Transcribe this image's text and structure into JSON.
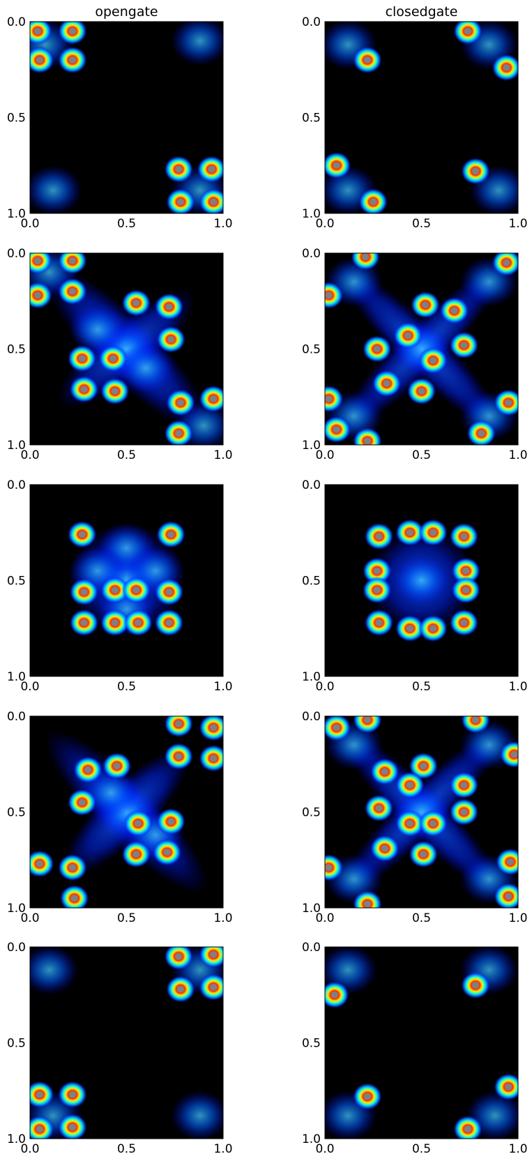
{
  "chart_data": {
    "type": "heatmap",
    "colormap": "jet",
    "background": "#000000",
    "saturated_color": "#808080",
    "grid": false,
    "legend": "none",
    "columns": [
      "opengate",
      "closedgate"
    ],
    "xlim": [
      0.0,
      1.0
    ],
    "ylim": [
      1.0,
      0.0
    ],
    "x_ticks": [
      "0.0",
      "0.5",
      "1.0"
    ],
    "y_ticks": [
      "0.0",
      "0.5",
      "1.0"
    ],
    "panels": [
      {
        "row": 0,
        "col": 0,
        "title": "opengate",
        "blobs": [
          [
            0.04,
            0.05
          ],
          [
            0.22,
            0.05
          ],
          [
            0.05,
            0.2
          ],
          [
            0.22,
            0.2
          ],
          [
            0.77,
            0.77
          ],
          [
            0.94,
            0.77
          ],
          [
            0.78,
            0.94
          ],
          [
            0.95,
            0.94
          ]
        ],
        "haze": [
          [
            0.08,
            0.12
          ],
          [
            0.88,
            0.1
          ],
          [
            0.12,
            0.88
          ],
          [
            0.88,
            0.88
          ]
        ],
        "bands": []
      },
      {
        "row": 0,
        "col": 1,
        "title": "closedgate",
        "blobs": [
          [
            0.74,
            0.05
          ],
          [
            0.22,
            0.2
          ],
          [
            0.94,
            0.24
          ],
          [
            0.78,
            0.78
          ],
          [
            0.06,
            0.75
          ],
          [
            0.25,
            0.94
          ]
        ],
        "haze": [
          [
            0.12,
            0.12
          ],
          [
            0.85,
            0.12
          ],
          [
            0.12,
            0.88
          ],
          [
            0.9,
            0.88
          ]
        ],
        "bands": []
      },
      {
        "row": 1,
        "col": 0,
        "title": "",
        "blobs": [
          [
            0.04,
            0.04
          ],
          [
            0.22,
            0.04
          ],
          [
            0.04,
            0.22
          ],
          [
            0.22,
            0.2
          ],
          [
            0.55,
            0.26
          ],
          [
            0.72,
            0.28
          ],
          [
            0.73,
            0.45
          ],
          [
            0.43,
            0.55
          ],
          [
            0.27,
            0.55
          ],
          [
            0.28,
            0.71
          ],
          [
            0.44,
            0.72
          ],
          [
            0.78,
            0.78
          ],
          [
            0.95,
            0.76
          ],
          [
            0.77,
            0.94
          ]
        ],
        "haze": [
          [
            0.5,
            0.5
          ],
          [
            0.35,
            0.4
          ],
          [
            0.6,
            0.6
          ],
          [
            0.1,
            0.1
          ],
          [
            0.9,
            0.9
          ]
        ],
        "bands": [
          [
            0.5,
            0.5,
            0.58,
            0.16,
            45
          ],
          [
            0.5,
            0.5,
            0.45,
            0.14,
            -40
          ]
        ]
      },
      {
        "row": 1,
        "col": 1,
        "title": "",
        "blobs": [
          [
            0.21,
            0.02
          ],
          [
            0.94,
            0.05
          ],
          [
            0.02,
            0.22
          ],
          [
            0.52,
            0.27
          ],
          [
            0.67,
            0.3
          ],
          [
            0.43,
            0.43
          ],
          [
            0.27,
            0.5
          ],
          [
            0.72,
            0.48
          ],
          [
            0.56,
            0.56
          ],
          [
            0.32,
            0.68
          ],
          [
            0.5,
            0.72
          ],
          [
            0.02,
            0.76
          ],
          [
            0.95,
            0.78
          ],
          [
            0.06,
            0.92
          ],
          [
            0.81,
            0.94
          ],
          [
            0.22,
            0.98
          ]
        ],
        "haze": [
          [
            0.5,
            0.5
          ],
          [
            0.15,
            0.15
          ],
          [
            0.85,
            0.15
          ],
          [
            0.15,
            0.85
          ],
          [
            0.85,
            0.85
          ]
        ],
        "bands": [
          [
            0.5,
            0.5,
            0.6,
            0.12,
            45
          ],
          [
            0.5,
            0.5,
            0.6,
            0.12,
            -45
          ]
        ]
      },
      {
        "row": 2,
        "col": 0,
        "title": "",
        "blobs": [
          [
            0.27,
            0.26
          ],
          [
            0.73,
            0.26
          ],
          [
            0.28,
            0.56
          ],
          [
            0.44,
            0.55
          ],
          [
            0.55,
            0.55
          ],
          [
            0.72,
            0.56
          ],
          [
            0.28,
            0.72
          ],
          [
            0.44,
            0.72
          ],
          [
            0.56,
            0.72
          ],
          [
            0.72,
            0.72
          ]
        ],
        "haze": [
          [
            0.5,
            0.5
          ],
          [
            0.5,
            0.33
          ],
          [
            0.35,
            0.45
          ],
          [
            0.65,
            0.45
          ],
          [
            0.5,
            0.65
          ]
        ],
        "bands": [
          [
            0.5,
            0.5,
            0.3,
            0.3,
            0
          ]
        ]
      },
      {
        "row": 2,
        "col": 1,
        "title": "",
        "blobs": [
          [
            0.28,
            0.27
          ],
          [
            0.72,
            0.27
          ],
          [
            0.44,
            0.25
          ],
          [
            0.56,
            0.25
          ],
          [
            0.27,
            0.45
          ],
          [
            0.73,
            0.45
          ],
          [
            0.27,
            0.55
          ],
          [
            0.73,
            0.55
          ],
          [
            0.28,
            0.72
          ],
          [
            0.44,
            0.75
          ],
          [
            0.56,
            0.75
          ],
          [
            0.72,
            0.72
          ]
        ],
        "haze": [
          [
            0.5,
            0.5
          ]
        ],
        "bands": [
          [
            0.5,
            0.5,
            0.28,
            0.28,
            0
          ]
        ]
      },
      {
        "row": 3,
        "col": 0,
        "title": "",
        "blobs": [
          [
            0.77,
            0.04
          ],
          [
            0.95,
            0.06
          ],
          [
            0.77,
            0.21
          ],
          [
            0.95,
            0.22
          ],
          [
            0.3,
            0.28
          ],
          [
            0.45,
            0.26
          ],
          [
            0.27,
            0.45
          ],
          [
            0.56,
            0.56
          ],
          [
            0.73,
            0.55
          ],
          [
            0.55,
            0.72
          ],
          [
            0.71,
            0.71
          ],
          [
            0.05,
            0.77
          ],
          [
            0.22,
            0.79
          ],
          [
            0.23,
            0.95
          ]
        ],
        "haze": [
          [
            0.5,
            0.5
          ],
          [
            0.42,
            0.4
          ],
          [
            0.65,
            0.62
          ]
        ],
        "bands": [
          [
            0.5,
            0.5,
            0.58,
            0.15,
            45
          ],
          [
            0.5,
            0.5,
            0.45,
            0.14,
            -45
          ]
        ]
      },
      {
        "row": 3,
        "col": 1,
        "title": "",
        "blobs": [
          [
            0.06,
            0.06
          ],
          [
            0.22,
            0.02
          ],
          [
            0.78,
            0.02
          ],
          [
            0.98,
            0.2
          ],
          [
            0.51,
            0.26
          ],
          [
            0.31,
            0.29
          ],
          [
            0.44,
            0.36
          ],
          [
            0.72,
            0.36
          ],
          [
            0.28,
            0.48
          ],
          [
            0.44,
            0.56
          ],
          [
            0.72,
            0.5
          ],
          [
            0.56,
            0.56
          ],
          [
            0.51,
            0.72
          ],
          [
            0.31,
            0.69
          ],
          [
            0.02,
            0.79
          ],
          [
            0.96,
            0.76
          ],
          [
            0.22,
            0.98
          ],
          [
            0.95,
            0.94
          ]
        ],
        "haze": [
          [
            0.5,
            0.5
          ],
          [
            0.15,
            0.15
          ],
          [
            0.85,
            0.15
          ],
          [
            0.15,
            0.85
          ],
          [
            0.85,
            0.85
          ]
        ],
        "bands": [
          [
            0.5,
            0.5,
            0.6,
            0.12,
            45
          ],
          [
            0.5,
            0.5,
            0.6,
            0.12,
            -45
          ]
        ]
      },
      {
        "row": 4,
        "col": 0,
        "title": "",
        "blobs": [
          [
            0.77,
            0.05
          ],
          [
            0.95,
            0.04
          ],
          [
            0.78,
            0.22
          ],
          [
            0.95,
            0.21
          ],
          [
            0.05,
            0.77
          ],
          [
            0.22,
            0.77
          ],
          [
            0.05,
            0.95
          ],
          [
            0.22,
            0.94
          ]
        ],
        "haze": [
          [
            0.1,
            0.12
          ],
          [
            0.88,
            0.12
          ],
          [
            0.12,
            0.88
          ],
          [
            0.88,
            0.88
          ]
        ],
        "bands": []
      },
      {
        "row": 4,
        "col": 1,
        "title": "",
        "blobs": [
          [
            0.78,
            0.2
          ],
          [
            0.05,
            0.25
          ],
          [
            0.22,
            0.78
          ],
          [
            0.74,
            0.95
          ],
          [
            0.95,
            0.73
          ]
        ],
        "haze": [
          [
            0.12,
            0.12
          ],
          [
            0.85,
            0.12
          ],
          [
            0.12,
            0.88
          ],
          [
            0.88,
            0.88
          ]
        ],
        "bands": []
      }
    ]
  }
}
